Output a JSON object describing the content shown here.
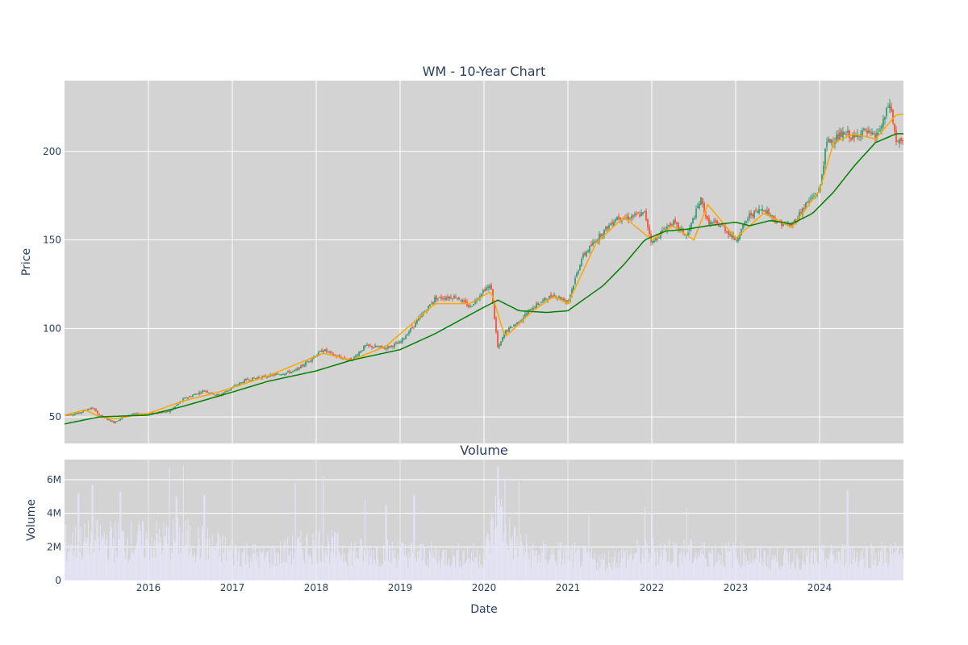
{
  "chart_data": [
    {
      "type": "candlestick",
      "title": "WM - 10-Year Chart",
      "xlabel": "",
      "ylabel": "Price",
      "xlim": [
        "2015-01-01",
        "2025-01-01"
      ],
      "ylim": [
        35,
        240
      ],
      "yticks": [
        50,
        100,
        150,
        200
      ],
      "grid": true,
      "legend": "none",
      "colors": {
        "background": "#d3d3d3",
        "grid": "#ffffff",
        "up": "#3d9970",
        "down": "#ef553b",
        "ma_short": "#ffa500",
        "ma_long": "#008000"
      },
      "series": [
        {
          "kind": "close",
          "x": [
            "2015-01",
            "2015-03",
            "2015-04",
            "2015-05",
            "2015-06",
            "2015-07",
            "2015-08",
            "2015-10",
            "2016-01",
            "2016-04",
            "2016-06",
            "2016-09",
            "2016-11",
            "2017-03",
            "2017-06",
            "2017-10",
            "2018-02",
            "2018-04",
            "2018-06",
            "2018-08",
            "2018-11",
            "2019-01",
            "2019-03",
            "2019-06",
            "2019-09",
            "2019-11",
            "2020-01",
            "2020-02",
            "2020-03",
            "2020-04",
            "2020-06",
            "2020-08",
            "2020-10",
            "2020-11",
            "2021-01",
            "2021-03",
            "2021-05",
            "2021-08",
            "2021-09",
            "2021-12",
            "2022-01",
            "2022-03",
            "2022-04",
            "2022-06",
            "2022-08",
            "2022-09",
            "2022-11",
            "2023-01",
            "2023-03",
            "2023-05",
            "2023-07",
            "2023-09",
            "2023-11",
            "2024-01",
            "2024-02",
            "2024-04",
            "2024-05",
            "2024-06",
            "2024-07",
            "2024-09",
            "2024-10",
            "2024-11",
            "2024-12"
          ],
          "y": [
            51,
            52,
            54,
            55,
            51,
            49,
            47,
            51,
            52,
            53,
            60,
            65,
            62,
            71,
            73,
            76,
            88,
            84,
            82,
            90,
            89,
            92,
            102,
            117,
            118,
            112,
            122,
            124,
            88,
            98,
            104,
            112,
            117,
            119,
            115,
            140,
            150,
            163,
            162,
            165,
            148,
            157,
            160,
            152,
            173,
            160,
            158,
            150,
            164,
            168,
            160,
            158,
            170,
            178,
            205,
            209,
            210,
            207,
            212,
            208,
            215,
            228,
            205
          ]
        },
        {
          "kind": "ma_short",
          "x": [
            "2015-01",
            "2015-04",
            "2015-06",
            "2015-08",
            "2016-01",
            "2016-06",
            "2016-11",
            "2017-06",
            "2018-02",
            "2018-06",
            "2018-11",
            "2019-06",
            "2019-11",
            "2020-02",
            "2020-04",
            "2020-08",
            "2020-11",
            "2021-01",
            "2021-05",
            "2021-09",
            "2022-01",
            "2022-04",
            "2022-07",
            "2022-09",
            "2023-01",
            "2023-05",
            "2023-09",
            "2024-01",
            "2024-03",
            "2024-06",
            "2024-09",
            "2024-12"
          ],
          "y": [
            51,
            54,
            50,
            49,
            52,
            59,
            64,
            73,
            86,
            82,
            90,
            114,
            114,
            121,
            95,
            110,
            118,
            114,
            148,
            163,
            150,
            158,
            150,
            170,
            151,
            165,
            157,
            178,
            205,
            210,
            207,
            221
          ]
        },
        {
          "kind": "ma_long",
          "x": [
            "2015-01",
            "2015-06",
            "2016-01",
            "2016-06",
            "2017-01",
            "2017-06",
            "2018-01",
            "2018-06",
            "2019-01",
            "2019-06",
            "2020-01",
            "2020-03",
            "2020-06",
            "2020-10",
            "2021-01",
            "2021-06",
            "2021-09",
            "2021-12",
            "2022-03",
            "2022-06",
            "2022-09",
            "2023-01",
            "2023-03",
            "2023-06",
            "2023-09",
            "2023-12",
            "2024-03",
            "2024-06",
            "2024-09",
            "2024-12"
          ],
          "y": [
            46,
            50,
            51,
            56,
            64,
            70,
            76,
            82,
            88,
            97,
            112,
            116,
            110,
            109,
            110,
            124,
            136,
            150,
            155,
            156,
            158,
            160,
            158,
            161,
            159,
            165,
            177,
            192,
            205,
            210
          ]
        }
      ]
    },
    {
      "type": "bar",
      "title": "Volume",
      "xlabel": "Date",
      "ylabel": "Volume",
      "xlim": [
        "2015-01-01",
        "2025-01-01"
      ],
      "ylim": [
        0,
        7200000
      ],
      "yticks": [
        0,
        2000000,
        4000000,
        6000000
      ],
      "ytick_labels": [
        "0",
        "2M",
        "4M",
        "6M"
      ],
      "xtick_labels": [
        "2016",
        "2017",
        "2018",
        "2019",
        "2020",
        "2021",
        "2022",
        "2023",
        "2024"
      ],
      "grid": true,
      "legend": "none",
      "colors": {
        "background": "#d3d3d3",
        "bar": "#e6e6fa"
      },
      "series": [
        {
          "kind": "volume_envelope",
          "x": [
            "2015-01",
            "2015-06",
            "2016-01",
            "2016-06",
            "2017-01",
            "2017-06",
            "2018-01",
            "2018-06",
            "2019-01",
            "2019-06",
            "2020-01",
            "2020-03",
            "2020-05",
            "2020-08",
            "2021-01",
            "2021-06",
            "2022-01",
            "2022-06",
            "2023-01",
            "2023-06",
            "2024-01",
            "2024-06",
            "2024-12"
          ],
          "y": [
            2800000,
            3100000,
            3000000,
            3200000,
            2200000,
            1800000,
            2800000,
            2200000,
            2100000,
            1900000,
            1900000,
            5200000,
            3100000,
            2000000,
            2000000,
            1500000,
            2300000,
            2100000,
            2000000,
            1700000,
            1800000,
            2000000,
            2000000
          ]
        },
        {
          "kind": "volume_spikes",
          "x": [
            "2015-03",
            "2015-05",
            "2015-09",
            "2016-04",
            "2016-05",
            "2016-06",
            "2016-09",
            "2017-10",
            "2018-02",
            "2018-08",
            "2018-11",
            "2019-03",
            "2020-03",
            "2020-04",
            "2020-06",
            "2021-04",
            "2021-12",
            "2022-01",
            "2022-06",
            "2024-05"
          ],
          "y": [
            5200000,
            5700000,
            5300000,
            6700000,
            5000000,
            6800000,
            5100000,
            5800000,
            6200000,
            4800000,
            4500000,
            5100000,
            6800000,
            6100000,
            5900000,
            4000000,
            4400000,
            4000000,
            4300000,
            5400000
          ]
        }
      ]
    }
  ]
}
